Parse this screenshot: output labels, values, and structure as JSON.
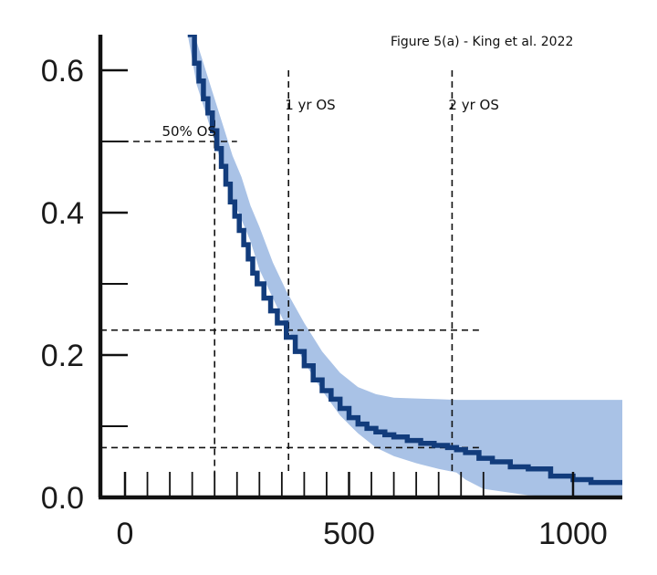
{
  "caption": "Figure 5(a) - King et al. 2022",
  "chart_data": {
    "type": "line",
    "title": "",
    "xlabel": "",
    "ylabel": "",
    "xlim": [
      -55,
      1110
    ],
    "ylim": [
      0,
      0.65
    ],
    "x_ticks_major": [
      0,
      500,
      1000
    ],
    "x_tick_labels": [
      "0",
      "500",
      "1000"
    ],
    "x_ticks_minor_step": 50,
    "x_minor_range": [
      0,
      800
    ],
    "y_ticks_major": [
      0,
      0.2,
      0.4,
      0.6
    ],
    "y_tick_labels": [
      "0.0",
      "0.2",
      "0.4",
      "0.6"
    ],
    "y_ticks_minor": [
      0.1,
      0.3,
      0.5
    ],
    "grid": false,
    "legend": "none",
    "colors": {
      "line": "#123c7c",
      "band": "#a9c2e6",
      "axis": "#111111",
      "annotation": "#111111"
    },
    "series": [
      {
        "type": "step-line",
        "x": [
          140,
          155,
          165,
          175,
          185,
          195,
          205,
          215,
          225,
          235,
          245,
          255,
          265,
          275,
          285,
          295,
          310,
          325,
          340,
          360,
          380,
          400,
          420,
          440,
          460,
          480,
          500,
          520,
          540,
          560,
          580,
          600,
          630,
          660,
          690,
          720,
          740,
          760,
          790,
          820,
          860,
          900,
          950,
          1000,
          1040,
          1110
        ],
        "y": [
          0.65,
          0.61,
          0.585,
          0.56,
          0.54,
          0.515,
          0.49,
          0.465,
          0.44,
          0.415,
          0.395,
          0.375,
          0.355,
          0.335,
          0.315,
          0.3,
          0.28,
          0.262,
          0.245,
          0.225,
          0.205,
          0.185,
          0.165,
          0.15,
          0.138,
          0.125,
          0.112,
          0.103,
          0.097,
          0.092,
          0.088,
          0.085,
          0.08,
          0.076,
          0.073,
          0.07,
          0.067,
          0.063,
          0.055,
          0.05,
          0.043,
          0.04,
          0.03,
          0.025,
          0.021,
          0.021
        ],
        "ci_x": [
          140,
          160,
          180,
          200,
          220,
          240,
          260,
          280,
          300,
          330,
          360,
          400,
          440,
          480,
          520,
          560,
          600,
          650,
          700,
          740,
          760,
          800,
          900,
          1000,
          1110
        ],
        "ci_upper": [
          0.65,
          0.64,
          0.6,
          0.56,
          0.52,
          0.48,
          0.45,
          0.41,
          0.38,
          0.33,
          0.29,
          0.245,
          0.205,
          0.175,
          0.155,
          0.145,
          0.14,
          0.139,
          0.138,
          0.137,
          0.137,
          0.137,
          0.137,
          0.137,
          0.137
        ],
        "ci_lower": [
          0.65,
          0.58,
          0.54,
          0.5,
          0.46,
          0.42,
          0.39,
          0.36,
          0.32,
          0.28,
          0.24,
          0.19,
          0.15,
          0.115,
          0.09,
          0.07,
          0.058,
          0.048,
          0.04,
          0.035,
          0.025,
          0.012,
          0.003,
          0.0,
          0.0
        ]
      }
    ],
    "annotations": [
      {
        "id": "median",
        "label": "50% OS",
        "x": 200,
        "y": 0.5
      },
      {
        "id": "one-year",
        "label": "1 yr OS",
        "x": 365,
        "y": 0.235
      },
      {
        "id": "two-year",
        "label": "2 yr OS",
        "x": 730,
        "y": 0.07
      }
    ]
  }
}
